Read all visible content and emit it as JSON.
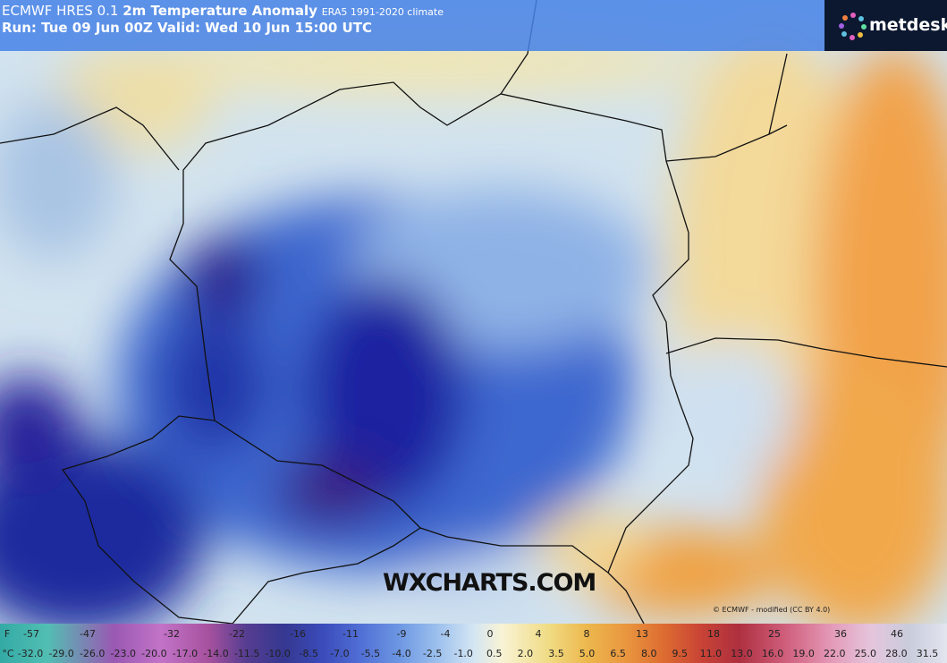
{
  "header": {
    "title_source": "ECMWF HRES 0.1",
    "title_main": "2m Temperature Anomaly",
    "title_sub": "ERA5 1991-2020 climate",
    "run": "Run: Tue 09 Jun 00Z Valid: Wed 10 Jun 15:00 UTC"
  },
  "logo": {
    "text": "metdesk"
  },
  "watermark": "WXCHARTS.COM",
  "credit": "© ECMWF - modified (CC BY 4.0)",
  "legend": {
    "f_unit": "F",
    "f_labels": [
      "-57",
      "-47",
      "-32",
      "-22",
      "-16",
      "-11",
      "-9",
      "-4",
      "0",
      "4",
      "8",
      "13",
      "18",
      "25",
      "36",
      "46"
    ],
    "c_unit": "°C",
    "c_labels": [
      "-32.0",
      "-29.0",
      "-26.0",
      "-23.0",
      "-20.0",
      "-17.0",
      "-14.0",
      "-11.5",
      "-10.0",
      "-8.5",
      "-7.0",
      "-5.5",
      "-4.0",
      "-2.5",
      "-1.0",
      "0.5",
      "2.0",
      "3.5",
      "5.0",
      "6.5",
      "8.0",
      "9.5",
      "11.0",
      "13.0",
      "16.0",
      "19.0",
      "22.0",
      "25.0",
      "28.0",
      "31.5"
    ]
  }
}
